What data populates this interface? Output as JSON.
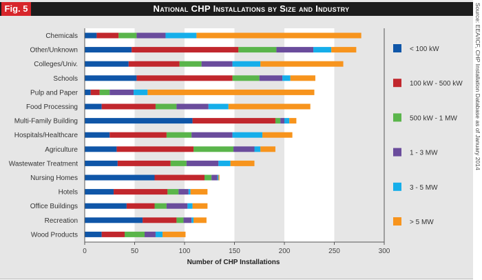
{
  "figure_label": "Fig. 5",
  "title": "National CHP Installations by Size and Industry",
  "source": "Source: EEA/ICF, CHP Installation Database as of January 2014",
  "chart_data": {
    "type": "bar",
    "orientation": "horizontal",
    "stacked": true,
    "title": "National CHP Installations by Size and Industry",
    "xlabel": "Number of CHP Installations",
    "ylabel": "",
    "xlim": [
      0,
      300
    ],
    "xticks": [
      0,
      50,
      100,
      150,
      200,
      250,
      300
    ],
    "grid": "alternating vertical bands",
    "legend_position": "right",
    "categories": [
      "Chemicals",
      "Other/Unknown",
      "Colleges/Univ.",
      "Schools",
      "Pulp and Paper",
      "Food Processing",
      "Multi-Family Building",
      "Hospitals/Healthcare",
      "Agriculture",
      "Wastewater Treatment",
      "Nursing Homes",
      "Hotels",
      "Office Buildings",
      "Recreation",
      "Wood Products"
    ],
    "series": [
      {
        "name": "< 100 kW",
        "color": "#0f56a8",
        "values": [
          12,
          47,
          44,
          52,
          6,
          17,
          108,
          25,
          32,
          33,
          70,
          29,
          42,
          58,
          17
        ]
      },
      {
        "name": "100 kW - 500 kW",
        "color": "#c1272d",
        "values": [
          22,
          107,
          51,
          96,
          9,
          54,
          83,
          57,
          77,
          53,
          50,
          54,
          28,
          34,
          23
        ]
      },
      {
        "name": "500 kW - 1 MW",
        "color": "#5ab54b",
        "values": [
          18,
          38,
          22,
          27,
          10,
          21,
          5,
          25,
          40,
          16,
          7,
          11,
          12,
          7,
          20
        ]
      },
      {
        "name": "1 - 3 MW",
        "color": "#6a4c9c",
        "values": [
          29,
          37,
          31,
          23,
          24,
          32,
          4,
          41,
          21,
          32,
          6,
          10,
          21,
          8,
          11
        ]
      },
      {
        "name": "3 - 5 MW",
        "color": "#15aeea",
        "values": [
          31,
          18,
          28,
          8,
          14,
          20,
          5,
          30,
          6,
          12,
          1,
          2,
          5,
          2,
          7
        ]
      },
      {
        "name": "> 5 MW",
        "color": "#f7941d",
        "values": [
          165,
          25,
          83,
          25,
          167,
          82,
          7,
          30,
          15,
          24,
          1,
          17,
          15,
          13,
          23
        ]
      }
    ]
  }
}
